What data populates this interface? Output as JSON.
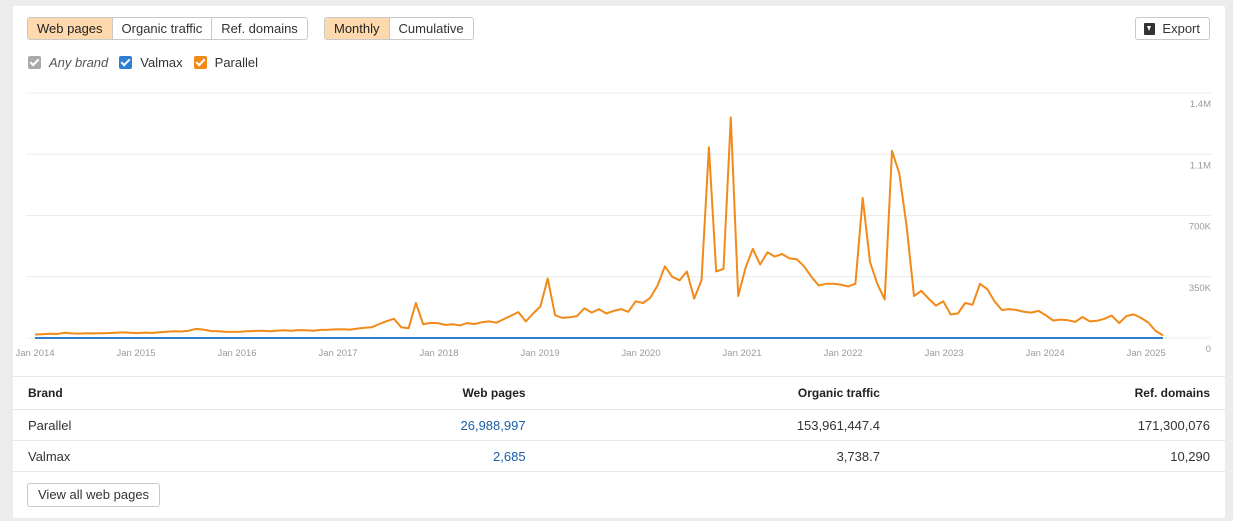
{
  "tabs": {
    "metric": [
      {
        "label": "Web pages",
        "active": true
      },
      {
        "label": "Organic traffic",
        "active": false
      },
      {
        "label": "Ref. domains",
        "active": false
      }
    ],
    "mode": [
      {
        "label": "Monthly",
        "active": true
      },
      {
        "label": "Cumulative",
        "active": false
      }
    ]
  },
  "export_label": "Export",
  "legend": [
    {
      "label": "Any brand",
      "color": "#a9a9a9",
      "checked": true
    },
    {
      "label": "Valmax",
      "color": "#2f7fd1",
      "checked": true
    },
    {
      "label": "Parallel",
      "color": "#f28a1a",
      "checked": true
    }
  ],
  "chart_data": {
    "type": "line",
    "x_start": "2014-01",
    "x_ticks": [
      "Jan 2014",
      "Jan 2015",
      "Jan 2016",
      "Jan 2017",
      "Jan 2018",
      "Jan 2019",
      "Jan 2020",
      "Jan 2021",
      "Jan 2022",
      "Jan 2023",
      "Jan 2024",
      "Jan 2025"
    ],
    "y_ticks": [
      "1.4M",
      "1.1M",
      "700K",
      "350K",
      "0"
    ],
    "ylim": [
      0,
      1400000
    ],
    "grid": true,
    "series": [
      {
        "name": "Parallel",
        "color": "#f28a1a",
        "values": [
          20000,
          22000,
          24000,
          23000,
          30000,
          26000,
          25000,
          27000,
          26000,
          27000,
          28000,
          30000,
          32000,
          30000,
          28000,
          31000,
          29000,
          33000,
          36000,
          38000,
          37000,
          42000,
          52000,
          48000,
          40000,
          38000,
          36000,
          35000,
          36000,
          38000,
          40000,
          41000,
          39000,
          42000,
          44000,
          41000,
          45000,
          44000,
          42000,
          46000,
          47000,
          49000,
          50000,
          48000,
          54000,
          58000,
          62000,
          80000,
          96000,
          110000,
          62000,
          56000,
          200000,
          78000,
          86000,
          85000,
          75000,
          78000,
          72000,
          85000,
          80000,
          90000,
          95000,
          88000,
          108000,
          128000,
          148000,
          95000,
          140000,
          180000,
          340000,
          130000,
          115000,
          118000,
          125000,
          170000,
          145000,
          165000,
          140000,
          155000,
          165000,
          150000,
          210000,
          200000,
          230000,
          300000,
          410000,
          350000,
          330000,
          380000,
          225000,
          330000,
          1090000,
          380000,
          395000,
          1260000,
          240000,
          400000,
          510000,
          420000,
          490000,
          465000,
          480000,
          455000,
          450000,
          410000,
          350000,
          300000,
          310000,
          310000,
          305000,
          295000,
          310000,
          800000,
          435000,
          310000,
          220000,
          1070000,
          940000,
          640000,
          240000,
          270000,
          225000,
          185000,
          210000,
          135000,
          140000,
          200000,
          190000,
          310000,
          280000,
          210000,
          160000,
          165000,
          160000,
          150000,
          145000,
          155000,
          130000,
          100000,
          105000,
          102000,
          92000,
          120000,
          95000,
          98000,
          110000,
          128000,
          85000,
          125000,
          135000,
          115000,
          88000,
          40000,
          15000
        ]
      },
      {
        "name": "Valmax",
        "color": "#2f7fd1",
        "values": [
          0,
          0
        ]
      }
    ]
  },
  "table": {
    "headers": [
      "Brand",
      "Web pages",
      "Organic traffic",
      "Ref. domains"
    ],
    "rows": [
      {
        "brand": "Parallel",
        "web_pages": "26,988,997",
        "organic_traffic": "153,961,447.4",
        "ref_domains": "171,300,076"
      },
      {
        "brand": "Valmax",
        "web_pages": "2,685",
        "organic_traffic": "3,738.7",
        "ref_domains": "10,290"
      }
    ]
  },
  "view_all_label": "View all web pages"
}
